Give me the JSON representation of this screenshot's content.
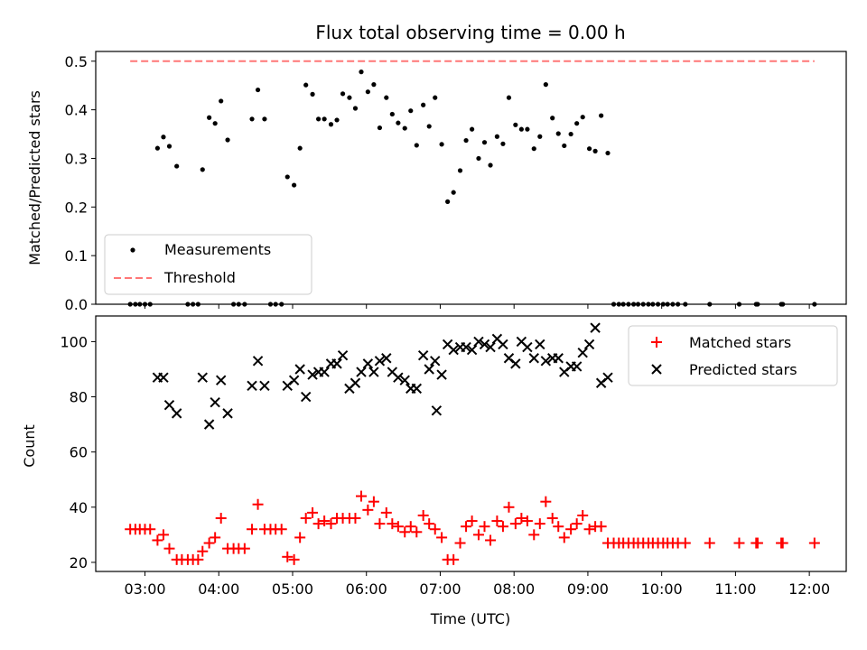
{
  "chart_data": [
    {
      "type": "scatter",
      "title": "Flux total observing time = 0.00 h",
      "ylabel": "Matched/Predicted stars",
      "xlabel": "",
      "xlim": [
        2.333,
        12.5
      ],
      "ylim": [
        0.0,
        0.52
      ],
      "y_ticks": [
        "0.0",
        "0.1",
        "0.2",
        "0.3",
        "0.4",
        "0.5"
      ],
      "legend_position": "lower-left",
      "series": [
        {
          "name": "Measurements",
          "color": "#000000",
          "marker": "dot",
          "points": [
            [
              2.8,
              0.0
            ],
            [
              2.87,
              0.0
            ],
            [
              2.93,
              0.0
            ],
            [
              3.0,
              0.0
            ],
            [
              3.07,
              0.0
            ],
            [
              3.17,
              0.321
            ],
            [
              3.25,
              0.344
            ],
            [
              3.33,
              0.325
            ],
            [
              3.43,
              0.284
            ],
            [
              3.58,
              0.0
            ],
            [
              3.65,
              0.0
            ],
            [
              3.72,
              0.0
            ],
            [
              3.78,
              0.277
            ],
            [
              3.87,
              0.384
            ],
            [
              3.95,
              0.372
            ],
            [
              4.03,
              0.418
            ],
            [
              4.12,
              0.338
            ],
            [
              4.2,
              0.0
            ],
            [
              4.27,
              0.0
            ],
            [
              4.35,
              0.0
            ],
            [
              4.45,
              0.381
            ],
            [
              4.53,
              0.441
            ],
            [
              4.62,
              0.381
            ],
            [
              4.7,
              0.0
            ],
            [
              4.77,
              0.0
            ],
            [
              4.85,
              0.0
            ],
            [
              4.93,
              0.262
            ],
            [
              5.02,
              0.245
            ],
            [
              5.1,
              0.321
            ],
            [
              5.18,
              0.451
            ],
            [
              5.27,
              0.432
            ],
            [
              5.35,
              0.381
            ],
            [
              5.43,
              0.381
            ],
            [
              5.52,
              0.37
            ],
            [
              5.6,
              0.379
            ],
            [
              5.68,
              0.433
            ],
            [
              5.77,
              0.425
            ],
            [
              5.85,
              0.403
            ],
            [
              5.93,
              0.478
            ],
            [
              6.02,
              0.437
            ],
            [
              6.1,
              0.452
            ],
            [
              6.18,
              0.363
            ],
            [
              6.27,
              0.425
            ],
            [
              6.35,
              0.391
            ],
            [
              6.43,
              0.373
            ],
            [
              6.52,
              0.362
            ],
            [
              6.6,
              0.398
            ],
            [
              6.68,
              0.327
            ],
            [
              6.77,
              0.41
            ],
            [
              6.85,
              0.366
            ],
            [
              6.93,
              0.425
            ],
            [
              7.02,
              0.329
            ],
            [
              7.1,
              0.211
            ],
            [
              7.18,
              0.23
            ],
            [
              7.27,
              0.275
            ],
            [
              7.35,
              0.337
            ],
            [
              7.43,
              0.36
            ],
            [
              7.52,
              0.3
            ],
            [
              7.6,
              0.333
            ],
            [
              7.68,
              0.286
            ],
            [
              7.77,
              0.345
            ],
            [
              7.85,
              0.33
            ],
            [
              7.93,
              0.425
            ],
            [
              8.02,
              0.369
            ],
            [
              8.1,
              0.36
            ],
            [
              8.18,
              0.36
            ],
            [
              8.27,
              0.32
            ],
            [
              8.35,
              0.345
            ],
            [
              8.43,
              0.452
            ],
            [
              8.52,
              0.383
            ],
            [
              8.6,
              0.351
            ],
            [
              8.68,
              0.326
            ],
            [
              8.77,
              0.35
            ],
            [
              8.85,
              0.372
            ],
            [
              8.93,
              0.385
            ],
            [
              9.02,
              0.32
            ],
            [
              9.1,
              0.315
            ],
            [
              9.18,
              0.388
            ],
            [
              9.27,
              0.311
            ],
            [
              9.35,
              0.0
            ],
            [
              9.42,
              0.0
            ],
            [
              9.48,
              0.0
            ],
            [
              9.55,
              0.0
            ],
            [
              9.62,
              0.0
            ],
            [
              9.68,
              0.0
            ],
            [
              9.75,
              0.0
            ],
            [
              9.82,
              0.0
            ],
            [
              9.88,
              0.0
            ],
            [
              9.95,
              0.0
            ],
            [
              10.02,
              0.0
            ],
            [
              10.08,
              0.0
            ],
            [
              10.15,
              0.0
            ],
            [
              10.22,
              0.0
            ],
            [
              10.32,
              0.0
            ],
            [
              10.65,
              0.0
            ],
            [
              11.05,
              0.0
            ],
            [
              11.28,
              0.0
            ],
            [
              11.3,
              0.0
            ],
            [
              11.62,
              0.0
            ],
            [
              11.64,
              0.0
            ],
            [
              12.07,
              0.0
            ]
          ]
        },
        {
          "name": "Threshold",
          "color": "#ff7777",
          "style": "dashed",
          "points": [
            [
              2.8,
              0.5
            ],
            [
              12.07,
              0.5
            ]
          ]
        }
      ]
    },
    {
      "type": "scatter",
      "title": "",
      "ylabel": "Count",
      "xlabel": "Time (UTC)",
      "xlim": [
        2.333,
        12.5
      ],
      "ylim": [
        16.7,
        109.3
      ],
      "y_ticks": [
        "20",
        "40",
        "60",
        "80",
        "100"
      ],
      "x_ticks": [
        "03:00",
        "04:00",
        "05:00",
        "06:00",
        "07:00",
        "08:00",
        "09:00",
        "10:00",
        "11:00",
        "12:00"
      ],
      "legend_position": "top-right",
      "series": [
        {
          "name": "Matched stars",
          "color": "#ff0000",
          "marker": "plus",
          "points": [
            [
              2.8,
              32
            ],
            [
              2.87,
              32
            ],
            [
              2.93,
              32
            ],
            [
              3.0,
              32
            ],
            [
              3.07,
              32
            ],
            [
              3.17,
              28
            ],
            [
              3.25,
              30
            ],
            [
              3.33,
              25
            ],
            [
              3.43,
              21
            ],
            [
              3.5,
              21
            ],
            [
              3.58,
              21
            ],
            [
              3.65,
              21
            ],
            [
              3.72,
              21
            ],
            [
              3.78,
              24
            ],
            [
              3.87,
              27
            ],
            [
              3.95,
              29
            ],
            [
              4.03,
              36
            ],
            [
              4.12,
              25
            ],
            [
              4.2,
              25
            ],
            [
              4.27,
              25
            ],
            [
              4.35,
              25
            ],
            [
              4.45,
              32
            ],
            [
              4.53,
              41
            ],
            [
              4.62,
              32
            ],
            [
              4.7,
              32
            ],
            [
              4.77,
              32
            ],
            [
              4.85,
              32
            ],
            [
              4.93,
              22
            ],
            [
              5.02,
              21
            ],
            [
              5.1,
              29
            ],
            [
              5.18,
              36
            ],
            [
              5.27,
              38
            ],
            [
              5.35,
              34
            ],
            [
              5.43,
              35
            ],
            [
              5.52,
              34
            ],
            [
              5.6,
              36
            ],
            [
              5.68,
              36
            ],
            [
              5.77,
              36
            ],
            [
              5.85,
              36
            ],
            [
              5.93,
              44
            ],
            [
              6.02,
              39
            ],
            [
              6.1,
              42
            ],
            [
              6.18,
              34
            ],
            [
              6.27,
              38
            ],
            [
              6.35,
              34
            ],
            [
              6.43,
              33
            ],
            [
              6.52,
              31
            ],
            [
              6.6,
              33
            ],
            [
              6.68,
              31
            ],
            [
              6.77,
              37
            ],
            [
              6.85,
              34
            ],
            [
              6.93,
              32
            ],
            [
              7.02,
              29
            ],
            [
              7.1,
              21
            ],
            [
              7.18,
              21
            ],
            [
              7.27,
              27
            ],
            [
              7.35,
              33
            ],
            [
              7.43,
              35
            ],
            [
              7.52,
              30
            ],
            [
              7.6,
              33
            ],
            [
              7.68,
              28
            ],
            [
              7.77,
              35
            ],
            [
              7.85,
              33
            ],
            [
              7.93,
              40
            ],
            [
              8.02,
              34
            ],
            [
              8.1,
              36
            ],
            [
              8.18,
              35
            ],
            [
              8.27,
              30
            ],
            [
              8.35,
              34
            ],
            [
              8.43,
              42
            ],
            [
              8.52,
              36
            ],
            [
              8.6,
              33
            ],
            [
              8.68,
              29
            ],
            [
              8.77,
              32
            ],
            [
              8.85,
              34
            ],
            [
              8.93,
              37
            ],
            [
              9.02,
              32
            ],
            [
              9.1,
              33
            ],
            [
              9.18,
              33
            ],
            [
              9.27,
              27
            ],
            [
              9.35,
              27
            ],
            [
              9.42,
              27
            ],
            [
              9.48,
              27
            ],
            [
              9.55,
              27
            ],
            [
              9.62,
              27
            ],
            [
              9.68,
              27
            ],
            [
              9.75,
              27
            ],
            [
              9.82,
              27
            ],
            [
              9.88,
              27
            ],
            [
              9.95,
              27
            ],
            [
              10.02,
              27
            ],
            [
              10.08,
              27
            ],
            [
              10.15,
              27
            ],
            [
              10.22,
              27
            ],
            [
              10.32,
              27
            ],
            [
              10.65,
              27
            ],
            [
              11.05,
              27
            ],
            [
              11.28,
              27
            ],
            [
              11.3,
              27
            ],
            [
              11.62,
              27
            ],
            [
              11.64,
              27
            ],
            [
              12.07,
              27
            ]
          ]
        },
        {
          "name": "Predicted stars",
          "color": "#000000",
          "marker": "x",
          "points": [
            [
              3.17,
              87
            ],
            [
              3.25,
              87
            ],
            [
              3.33,
              77
            ],
            [
              3.43,
              74
            ],
            [
              3.78,
              87
            ],
            [
              3.87,
              70
            ],
            [
              3.95,
              78
            ],
            [
              4.03,
              86
            ],
            [
              4.12,
              74
            ],
            [
              4.45,
              84
            ],
            [
              4.53,
              93
            ],
            [
              4.62,
              84
            ],
            [
              4.93,
              84
            ],
            [
              5.02,
              86
            ],
            [
              5.1,
              90
            ],
            [
              5.18,
              80
            ],
            [
              5.27,
              88
            ],
            [
              5.35,
              89
            ],
            [
              5.43,
              89
            ],
            [
              5.52,
              92
            ],
            [
              5.6,
              92
            ],
            [
              5.68,
              95
            ],
            [
              5.77,
              83
            ],
            [
              5.85,
              85
            ],
            [
              5.93,
              89
            ],
            [
              6.02,
              92
            ],
            [
              6.1,
              89
            ],
            [
              6.18,
              93
            ],
            [
              6.27,
              94
            ],
            [
              6.35,
              89
            ],
            [
              6.43,
              87
            ],
            [
              6.52,
              86
            ],
            [
              6.6,
              83
            ],
            [
              6.68,
              83
            ],
            [
              6.77,
              95
            ],
            [
              6.85,
              90
            ],
            [
              6.93,
              93
            ],
            [
              7.02,
              88
            ],
            [
              7.1,
              99
            ],
            [
              7.18,
              97
            ],
            [
              7.27,
              98
            ],
            [
              7.35,
              98
            ],
            [
              7.43,
              97
            ],
            [
              7.52,
              100
            ],
            [
              7.6,
              99
            ],
            [
              7.68,
              98
            ],
            [
              7.77,
              101
            ],
            [
              7.85,
              99
            ],
            [
              7.93,
              94
            ],
            [
              8.02,
              92
            ],
            [
              8.1,
              100
            ],
            [
              8.18,
              98
            ],
            [
              8.27,
              94
            ],
            [
              8.35,
              99
            ],
            [
              8.43,
              93
            ],
            [
              8.52,
              94
            ],
            [
              8.6,
              94
            ],
            [
              8.68,
              89
            ],
            [
              8.77,
              91
            ],
            [
              8.85,
              91
            ],
            [
              8.93,
              96
            ],
            [
              9.02,
              99
            ],
            [
              9.1,
              105
            ],
            [
              9.18,
              85
            ],
            [
              9.27,
              87
            ],
            [
              6.95,
              75
            ]
          ]
        }
      ]
    }
  ]
}
